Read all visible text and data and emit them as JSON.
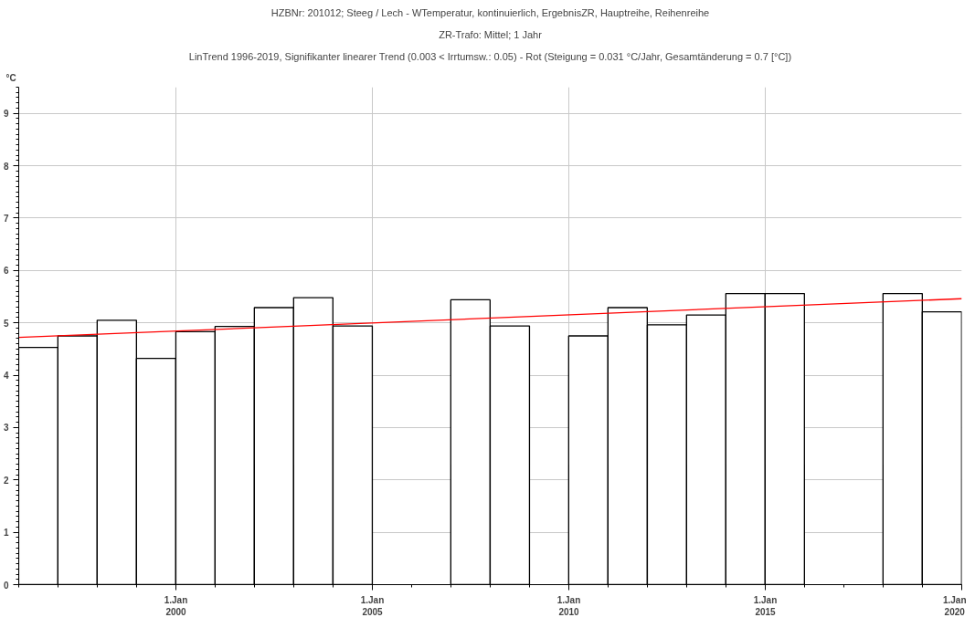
{
  "chart_data": {
    "type": "bar",
    "title": "HZBNr: 201012; Steeg / Lech - WTemperatur, kontinuierlich, ErgebnisZR, Hauptreihe, Reihenreihe",
    "subtitle": "ZR-Trafo: Mittel; 1 Jahr",
    "annotations": [
      "LinTrend 1996-2019, Signifikanter linearer Trend (0.003 < Irrtumsw.: 0.05) - Rot (Steigung = 0.031 °C/Jahr, Gesamtänderung = 0.7 [°C])"
    ],
    "ylabel": "°C",
    "x": [
      "1996-07-01",
      "1997-07-01",
      "1998-07-01",
      "1999-07-01",
      "2000-07-01",
      "2001-07-01",
      "2002-07-01",
      "2003-07-01",
      "2004-07-01",
      "2005-07-01",
      "2006-07-01",
      "2007-07-01",
      "2008-07-01",
      "2009-07-01",
      "2010-07-01",
      "2011-07-01",
      "2012-07-01",
      "2013-07-01",
      "2014-07-01",
      "2015-07-01",
      "2016-07-01",
      "2017-07-01",
      "2018-07-01",
      "2019-07-01"
    ],
    "series": [
      {
        "color": "#000000",
        "values": [
          4.53,
          4.75,
          5.05,
          4.32,
          4.83,
          4.93,
          5.29,
          5.48,
          4.94,
          null,
          null,
          5.44,
          4.94,
          null,
          4.75,
          5.29,
          4.96,
          5.15,
          5.56,
          5.56,
          null,
          null,
          5.56,
          5.21
        ]
      },
      {
        "type": "line",
        "color": "#ff0000",
        "x": [
          "1996",
          "2020"
        ],
        "values": [
          4.72,
          5.46
        ]
      }
    ],
    "xlim": [
      "1996",
      "2020"
    ],
    "xticks": [
      {
        "value": "2000",
        "label": "1.Jan\n2000"
      },
      {
        "value": "2005",
        "label": "1.Jan\n2005"
      },
      {
        "value": "2010",
        "label": "1.Jan\n2010"
      },
      {
        "value": "2015",
        "label": "1.Jan\n2015"
      },
      {
        "value": "2020",
        "label": "1.Jan\n2020"
      }
    ],
    "ylim": [
      0,
      9.5
    ],
    "yticks": [
      0,
      1,
      2,
      3,
      4,
      5,
      6,
      7,
      8,
      9
    ],
    "grid": true,
    "line_style": "solid",
    "marker": "none"
  }
}
